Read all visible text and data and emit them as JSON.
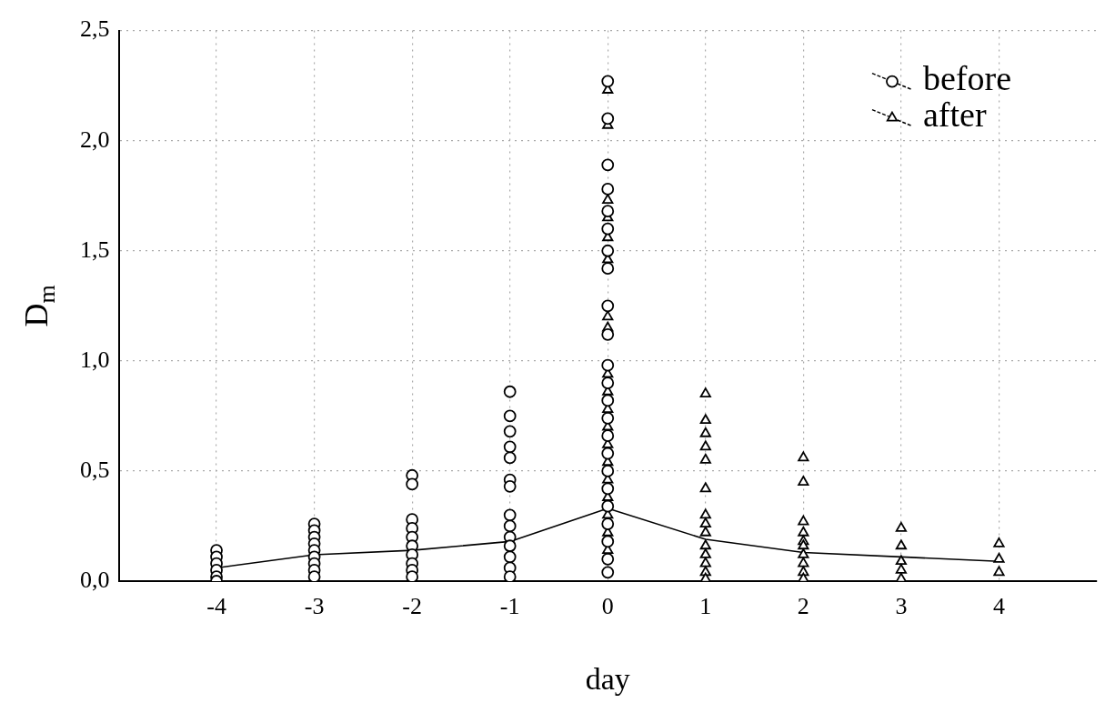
{
  "chart_data": {
    "type": "scatter",
    "xlabel": "day",
    "ylabel": "D$_{m}$",
    "xlim": [
      -5,
      5
    ],
    "xticks": [
      -4,
      -3,
      -2,
      -1,
      0,
      1,
      2,
      3,
      4
    ],
    "ylim": [
      0,
      2.5
    ],
    "yticks": [
      {
        "value": 0,
        "label": "0,0"
      },
      {
        "value": 0.5,
        "label": "0,5"
      },
      {
        "value": 1,
        "label": "1,0"
      },
      {
        "value": 1.5,
        "label": "1,5"
      },
      {
        "value": 2,
        "label": "2,0"
      },
      {
        "value": 2.5,
        "label": "2,5"
      }
    ],
    "grid": true,
    "legend": "top right",
    "series": [
      {
        "name": "before",
        "color": "#000000",
        "marker": "circle",
        "x": [
          -4,
          -4,
          -4,
          -4,
          -4,
          -4,
          -3,
          -3,
          -3,
          -3,
          -3,
          -3,
          -3,
          -3,
          -3,
          -2,
          -2,
          -2,
          -2,
          -2,
          -2,
          -2,
          -2,
          -2,
          -2,
          -1,
          -1,
          -1,
          -1,
          -1,
          -1,
          -1,
          -1,
          -1,
          -1,
          -1,
          -1,
          -1,
          -1,
          0,
          0,
          0,
          0,
          0,
          0,
          0,
          0,
          0,
          0,
          0,
          0,
          0,
          0,
          0,
          0,
          0,
          0,
          0,
          0,
          0,
          0,
          0
        ],
        "values": [
          0.14,
          0.11,
          0.08,
          0.05,
          0.02,
          0.0,
          0.26,
          0.23,
          0.2,
          0.17,
          0.14,
          0.11,
          0.08,
          0.05,
          0.02,
          0.48,
          0.44,
          0.28,
          0.24,
          0.2,
          0.16,
          0.12,
          0.08,
          0.05,
          0.02,
          0.86,
          0.75,
          0.68,
          0.61,
          0.56,
          0.46,
          0.43,
          0.3,
          0.25,
          0.2,
          0.16,
          0.11,
          0.06,
          0.02,
          2.27,
          2.1,
          1.89,
          1.78,
          1.68,
          1.6,
          1.5,
          1.42,
          1.25,
          1.12,
          0.98,
          0.9,
          0.82,
          0.74,
          0.66,
          0.58,
          0.5,
          0.42,
          0.34,
          0.26,
          0.18,
          0.1,
          0.04
        ]
      },
      {
        "name": "after",
        "color": "#000000",
        "marker": "triangle",
        "x": [
          0,
          0,
          0,
          0,
          0,
          0,
          0,
          0,
          0,
          0,
          0,
          0,
          0,
          0,
          0,
          0,
          0,
          0,
          0,
          1,
          1,
          1,
          1,
          1,
          1,
          1,
          1,
          1,
          1,
          1,
          1,
          1,
          1,
          2,
          2,
          2,
          2,
          2,
          2,
          2,
          2,
          2,
          2,
          3,
          3,
          3,
          3,
          3,
          4,
          4,
          4
        ],
        "values": [
          2.23,
          2.07,
          1.73,
          1.65,
          1.56,
          1.46,
          1.2,
          1.15,
          0.94,
          0.86,
          0.78,
          0.7,
          0.62,
          0.54,
          0.46,
          0.38,
          0.3,
          0.22,
          0.14,
          0.85,
          0.73,
          0.67,
          0.61,
          0.55,
          0.42,
          0.3,
          0.26,
          0.22,
          0.16,
          0.12,
          0.08,
          0.04,
          0.01,
          0.56,
          0.45,
          0.27,
          0.22,
          0.18,
          0.16,
          0.12,
          0.08,
          0.04,
          0.01,
          0.24,
          0.16,
          0.09,
          0.05,
          0.01,
          0.17,
          0.1,
          0.04
        ]
      },
      {
        "type": "line",
        "color": "#000000",
        "marker": "none",
        "x": [
          -4,
          -3,
          -2,
          -1,
          0,
          1,
          2,
          3,
          4
        ],
        "values": [
          0.06,
          0.12,
          0.14,
          0.18,
          0.33,
          0.19,
          0.13,
          0.11,
          0.09
        ]
      }
    ]
  }
}
